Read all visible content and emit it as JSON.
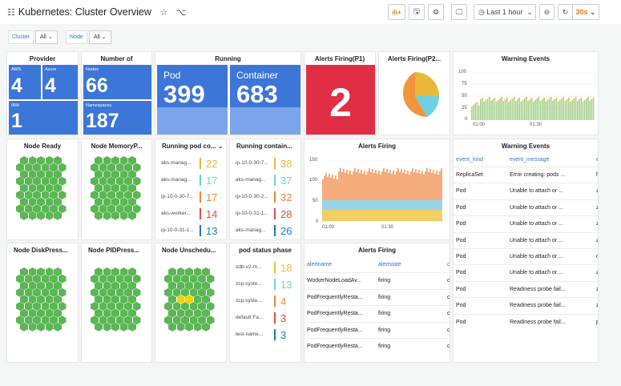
{
  "header": {
    "title": "Kubernetes: Cluster Overview",
    "time_range": "Last 1 hour",
    "refresh": "30s"
  },
  "variables": [
    {
      "label": "Cluster",
      "value": "All"
    },
    {
      "label": "Node",
      "value": "All"
    }
  ],
  "provider": {
    "title": "Provider",
    "aws_label": "AWS",
    "aws_value": "4",
    "azure_label": "Azure",
    "azure_value": "4",
    "ibm_label": "IBM",
    "ibm_value": "1"
  },
  "number": {
    "title": "Number of",
    "nodes_label": "Nodes",
    "nodes_value": "66",
    "ns_label": "Namespaces",
    "ns_value": "187"
  },
  "running": {
    "title": "Running",
    "pod_label": "Pod",
    "pod_value": "399",
    "container_label": "Container",
    "container_value": "683"
  },
  "alerts_p1": {
    "title": "Alerts Firing(P1)",
    "value": "2"
  },
  "alerts_p2": {
    "title": "Alerts Firing(P2..."
  },
  "warning_chart": {
    "title": "Warning Events",
    "yticks": [
      "100",
      "75",
      "50",
      "25",
      "0"
    ],
    "xticks": [
      "01:00",
      "01:30"
    ]
  },
  "hex_panels": [
    {
      "title": "Node Ready"
    },
    {
      "title": "Node MemoryP..."
    },
    {
      "title": "Node DiskPress..."
    },
    {
      "title": "Node PIDPress..."
    },
    {
      "title": "Node Unschedu..."
    }
  ],
  "running_pod_count": {
    "title": "Running pod co...",
    "rows": [
      {
        "name": "aks-manag...",
        "value": "22"
      },
      {
        "name": "aks-manag...",
        "value": "17"
      },
      {
        "name": "ip-10-0-30-7...",
        "value": "17"
      },
      {
        "name": "aks-worker...",
        "value": "14"
      },
      {
        "name": "ip-10-0-31-1...",
        "value": "13"
      }
    ]
  },
  "running_container": {
    "title": "Running contain...",
    "rows": [
      {
        "name": "ip-10-0-30-7...",
        "value": "38"
      },
      {
        "name": "aks-manag...",
        "value": "37"
      },
      {
        "name": "ip-10-0-30-2...",
        "value": "32"
      },
      {
        "name": "ip-10-0-31-1...",
        "value": "28"
      },
      {
        "name": "aks-manag...",
        "value": "26"
      }
    ]
  },
  "pod_status": {
    "title": "pod status phase",
    "rows": [
      {
        "name": "zdb-v2-m...",
        "value": "18"
      },
      {
        "name": "zcp-syste...",
        "value": "13"
      },
      {
        "name": "zcp-syste...",
        "value": "4"
      },
      {
        "name": "default Fa...",
        "value": "3"
      },
      {
        "name": "test-name...",
        "value": "3"
      }
    ]
  },
  "alerts_chart": {
    "title": "Alerts Firing",
    "yticks": [
      "150",
      "100",
      "50",
      "0"
    ],
    "xticks": [
      "01:00",
      "01:30"
    ]
  },
  "alerts_table": {
    "title": "Alerts Firing",
    "col1": "alertname",
    "col2": "alertstate",
    "col3": "c",
    "rows": [
      {
        "name": "WorkerNodeLoadAv...",
        "state": "firing"
      },
      {
        "name": "PodFrequentlyResta...",
        "state": "firing"
      },
      {
        "name": "PodFrequentlyResta...",
        "state": "firing"
      },
      {
        "name": "PodFrequentlyResta...",
        "state": "firing"
      },
      {
        "name": "PodFrequentlyResta...",
        "state": "firing"
      }
    ]
  },
  "warning_table": {
    "title": "Warning Events",
    "col1": "event_kind",
    "col2": "event_message",
    "col3": "e",
    "rows": [
      {
        "kind": "ReplicaSet",
        "msg": "Error creating: pods ...",
        "e": "h"
      },
      {
        "kind": "Pod",
        "msg": "Unable to attach or ...",
        "e": "z"
      },
      {
        "kind": "Pod",
        "msg": "Unable to attach or ...",
        "e": "z"
      },
      {
        "kind": "Pod",
        "msg": "Unable to attach or ...",
        "e": "z"
      },
      {
        "kind": "Pod",
        "msg": "Unable to attach or ...",
        "e": "z"
      },
      {
        "kind": "Pod",
        "msg": "Unable to attach or ...",
        "e": "c"
      },
      {
        "kind": "Pod",
        "msg": "Unable to attach or ...",
        "e": "z"
      },
      {
        "kind": "Pod",
        "msg": "Readiness probe fail...",
        "e": "z"
      },
      {
        "kind": "Pod",
        "msg": "Readiness probe fail...",
        "e": "z"
      },
      {
        "kind": "Pod",
        "msg": "Readiness probe fail...",
        "e": "p"
      }
    ]
  },
  "colors": {
    "blue": "#3c76d8",
    "red": "#e02f44",
    "green": "#5bb654",
    "orange": "#f2943c",
    "yellow": "#eab839"
  }
}
